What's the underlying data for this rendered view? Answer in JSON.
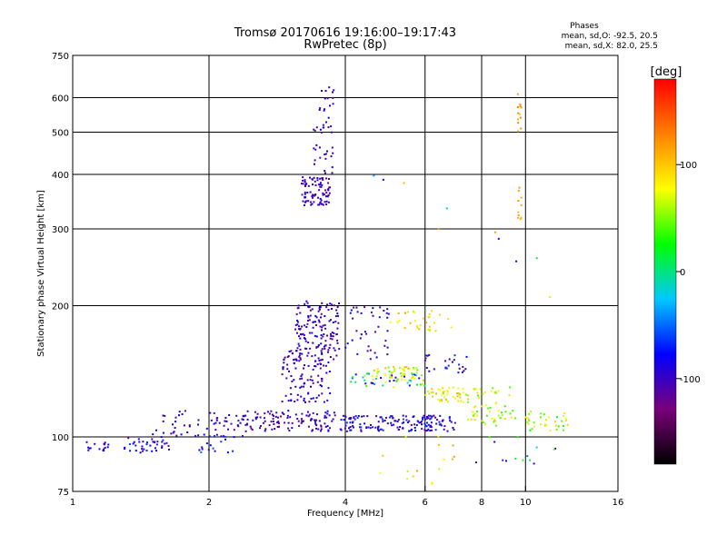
{
  "chart_data": {
    "type": "scatter",
    "title": "Tromsø 20170616 19:16:00–19:17:43",
    "subtitle": "RwPretec (8p)",
    "xlabel": "Frequency [MHz]",
    "ylabel": "Stationary phase Virtual Height [km]",
    "x_scale": "log2",
    "y_scale": "log",
    "xlim": [
      1,
      16
    ],
    "ylim": [
      75,
      750
    ],
    "x_ticks": [
      1,
      2,
      4,
      6,
      8,
      10,
      16
    ],
    "y_ticks": [
      75,
      100,
      200,
      300,
      400,
      500,
      600,
      750
    ],
    "x_gridlines": [
      2,
      4,
      6,
      8,
      10
    ],
    "y_gridlines": [
      100,
      200,
      300,
      400,
      500,
      600
    ],
    "grid": true,
    "legend": {
      "title": "Phases",
      "lines": [
        "mean, sd,O: -92.5, 20.5",
        "mean, sd,X:  82.0, 25.5"
      ],
      "placement": "top-right"
    },
    "colorbar": {
      "label": "[deg]",
      "ticks": [
        "100",
        "0",
        "-100"
      ],
      "tick_values": [
        100,
        0,
        -100
      ],
      "range": [
        -180,
        180
      ],
      "colormap": [
        "#000000",
        "#7a007a",
        "#0000ff",
        "#00c8ff",
        "#00ff00",
        "#ffff00",
        "#ff8000",
        "#ff0000"
      ]
    },
    "clusters": [
      {
        "x": [
          1.05,
          1.2
        ],
        "y": [
          92,
          98
        ],
        "n": 16,
        "phase": [
          -110,
          -80
        ]
      },
      {
        "x": [
          1.3,
          1.65
        ],
        "y": [
          92,
          100
        ],
        "n": 40,
        "phase": [
          -120,
          -60
        ]
      },
      {
        "x": [
          1.5,
          2.4
        ],
        "y": [
          100,
          115
        ],
        "n": 60,
        "phase": [
          -120,
          -80
        ]
      },
      {
        "x": [
          1.9,
          2.3
        ],
        "y": [
          92,
          102
        ],
        "n": 18,
        "phase": [
          -100,
          -40
        ]
      },
      {
        "x": [
          2.4,
          3.8
        ],
        "y": [
          103,
          115
        ],
        "n": 110,
        "phase": [
          -130,
          -80
        ]
      },
      {
        "x": [
          3.1,
          3.9
        ],
        "y": [
          150,
          205
        ],
        "n": 140,
        "phase": [
          -120,
          -80
        ]
      },
      {
        "x": [
          2.9,
          3.7
        ],
        "y": [
          120,
          160
        ],
        "n": 110,
        "phase": [
          -120,
          -80
        ]
      },
      {
        "x": [
          3.2,
          3.7
        ],
        "y": [
          340,
          395
        ],
        "n": 90,
        "phase": [
          -120,
          -80
        ]
      },
      {
        "x": [
          3.4,
          3.8
        ],
        "y": [
          400,
          640
        ],
        "n": 45,
        "phase": [
          -120,
          -80
        ]
      },
      {
        "x": [
          3.9,
          7.0
        ],
        "y": [
          103,
          112
        ],
        "n": 160,
        "phase": [
          -120,
          -60
        ]
      },
      {
        "x": [
          4.0,
          6.0
        ],
        "y": [
          130,
          140
        ],
        "n": 55,
        "phase": [
          -110,
          110
        ]
      },
      {
        "x": [
          4.6,
          5.8
        ],
        "y": [
          135,
          145
        ],
        "n": 40,
        "phase": [
          40,
          110
        ]
      },
      {
        "x": [
          4.0,
          5.0
        ],
        "y": [
          150,
          200
        ],
        "n": 40,
        "phase": [
          -120,
          -70
        ]
      },
      {
        "x": [
          5.0,
          6.9
        ],
        "y": [
          175,
          195
        ],
        "n": 30,
        "phase": [
          60,
          120
        ]
      },
      {
        "x": [
          6.0,
          7.5
        ],
        "y": [
          120,
          130
        ],
        "n": 45,
        "phase": [
          50,
          110
        ]
      },
      {
        "x": [
          6.0,
          7.5
        ],
        "y": [
          140,
          155
        ],
        "n": 25,
        "phase": [
          -110,
          -60
        ]
      },
      {
        "x": [
          7.4,
          9.5
        ],
        "y": [
          106,
          130
        ],
        "n": 60,
        "phase": [
          30,
          100
        ]
      },
      {
        "x": [
          10.0,
          12.5
        ],
        "y": [
          103,
          115
        ],
        "n": 35,
        "phase": [
          20,
          100
        ]
      },
      {
        "x": [
          9.6,
          9.8
        ],
        "y": [
          310,
          380
        ],
        "n": 10,
        "phase": [
          100,
          120
        ]
      },
      {
        "x": [
          9.6,
          9.8
        ],
        "y": [
          480,
          615
        ],
        "n": 12,
        "phase": [
          100,
          130
        ]
      },
      {
        "x": [
          4.5,
          7.0
        ],
        "y": [
          78,
          100
        ],
        "n": 16,
        "phase": [
          60,
          130
        ]
      },
      {
        "x": [
          7.5,
          12.0
        ],
        "y": [
          85,
          100
        ],
        "n": 14,
        "phase": [
          -110,
          50
        ]
      },
      {
        "x": [
          4.0,
          13.0
        ],
        "y": [
          200,
          420
        ],
        "n": 10,
        "phase": [
          -120,
          130
        ]
      }
    ]
  }
}
